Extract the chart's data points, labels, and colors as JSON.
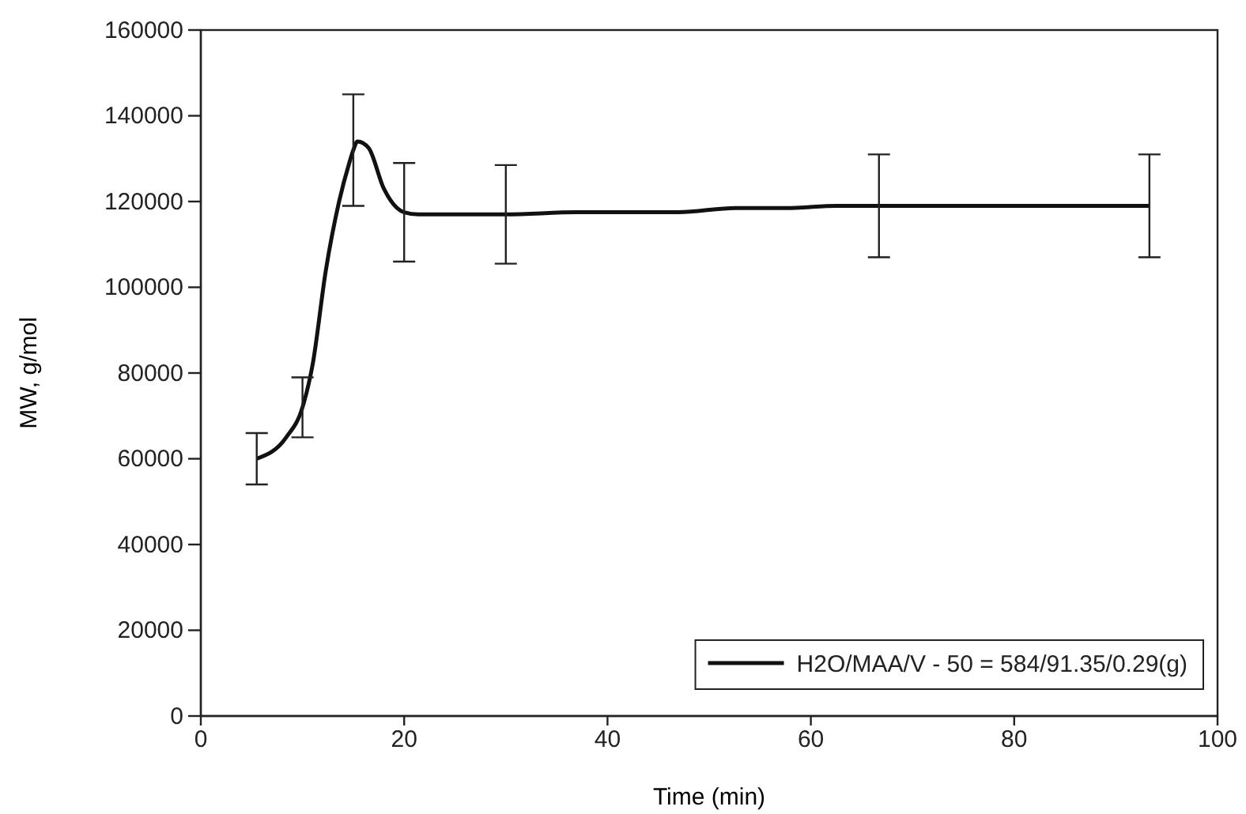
{
  "chart_data": {
    "type": "line",
    "xlabel": "Time (min)",
    "ylabel": "MW, g/mol",
    "xlim": [
      0,
      100
    ],
    "xticks": [
      0,
      20,
      40,
      60,
      80,
      100
    ],
    "ylim": [
      0,
      160000
    ],
    "yticks": [
      0,
      20000,
      40000,
      60000,
      80000,
      100000,
      120000,
      140000,
      160000
    ],
    "grid": false,
    "legend": "bottom right",
    "marker": "none",
    "line_style": "solid",
    "series": [
      {
        "name": "H2O/MAA/V - 50 = 584/91.35/0.29(g)",
        "color": "#111111",
        "x": [
          5.5,
          8.4,
          10,
          11,
          12.3,
          13.6,
          14.6,
          15,
          15.4,
          16.5,
          18,
          20,
          21.4,
          30,
          37,
          47,
          52.6,
          57.8,
          62.5,
          66.7,
          93.3
        ],
        "values": [
          60000,
          65000,
          72000,
          82000,
          104000,
          120000,
          129000,
          132000,
          134000,
          132500,
          123000,
          117500,
          117000,
          117000,
          117500,
          117500,
          118500,
          118500,
          119000,
          119000,
          119000
        ],
        "errors": [
          6000,
          null,
          7000,
          null,
          null,
          null,
          null,
          13000,
          null,
          null,
          null,
          11500,
          null,
          11500,
          null,
          null,
          null,
          null,
          null,
          12000,
          12000
        ]
      }
    ]
  }
}
